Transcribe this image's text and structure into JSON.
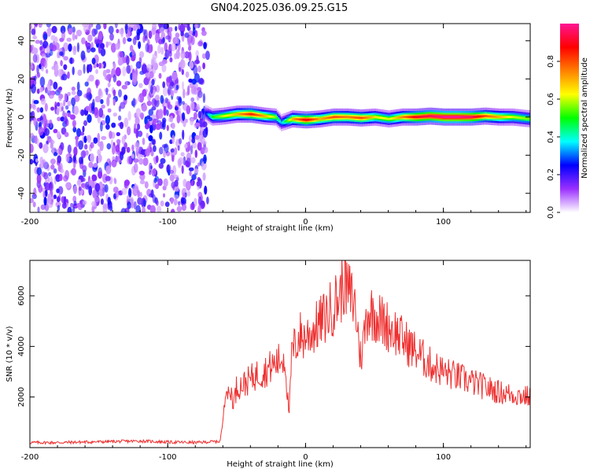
{
  "title": "GN04.2025.036.09.25.G15",
  "chart_data": [
    {
      "type": "heatmap",
      "xlabel": "Height of straight line (km)",
      "ylabel": "Frequency (Hz)",
      "xlim": [
        -200,
        163
      ],
      "ylim": [
        -50,
        49
      ],
      "x_ticks": [
        -200,
        -100,
        0,
        100
      ],
      "x_tick_labels": [
        "-200",
        "-100",
        "0",
        "100"
      ],
      "y_ticks": [
        -40,
        -20,
        0,
        20,
        40
      ],
      "y_tick_labels": [
        "-40",
        "-20",
        "0",
        "20",
        "40"
      ],
      "grid": false,
      "noise_region_km": [
        -200,
        -71
      ],
      "ridge": {
        "x": [
          -73,
          -68,
          -60,
          -50,
          -40,
          -30,
          -22,
          -18,
          -10,
          0,
          10,
          20,
          30,
          40,
          50,
          60,
          70,
          80,
          90,
          100,
          110,
          120,
          130,
          140,
          150,
          163
        ],
        "frequency_hz": [
          2,
          0,
          0.5,
          1.5,
          1.5,
          0.5,
          0,
          -3,
          -1,
          -1.5,
          -1,
          0,
          0,
          -0.5,
          0,
          -1,
          0,
          0,
          0.5,
          0,
          0,
          0,
          0.5,
          0,
          0,
          -1
        ],
        "amplitude": [
          0.25,
          0.5,
          0.6,
          0.7,
          0.85,
          0.7,
          0.55,
          0.35,
          0.7,
          0.9,
          0.7,
          0.8,
          0.75,
          0.8,
          0.65,
          0.6,
          0.75,
          0.9,
          0.95,
          1.0,
          1.0,
          0.95,
          0.8,
          0.7,
          0.6,
          0.55
        ]
      },
      "colorbar": {
        "label": "Normalized spectral amplitude",
        "range": [
          0,
          1
        ],
        "ticks": [
          0.0,
          0.2,
          0.4,
          0.6,
          0.8
        ],
        "tick_labels": [
          "0.0",
          "0.2",
          "0.4",
          "0.6",
          "0.8"
        ],
        "colors": [
          "#ffffff",
          "#9b30ff",
          "#0000ff",
          "#00ffff",
          "#00ff00",
          "#ffff00",
          "#ff8000",
          "#ff0000",
          "#ff1493"
        ]
      }
    },
    {
      "type": "line",
      "xlabel": "Height of straight line (km)",
      "ylabel": "SNR (10 * v/v)",
      "xlim": [
        -200,
        163
      ],
      "ylim": [
        0,
        7400
      ],
      "x_ticks": [
        -200,
        -100,
        0,
        100
      ],
      "x_tick_labels": [
        "-200",
        "-100",
        "0",
        "100"
      ],
      "y_ticks": [
        2000,
        4000,
        6000
      ],
      "y_tick_labels": [
        "2000",
        "4000",
        "6000"
      ],
      "grid": false,
      "line_color": "#ee3030",
      "series": [
        {
          "x": [
            -200,
            -180,
            -160,
            -140,
            -120,
            -100,
            -80,
            -62,
            -60,
            -58,
            -56,
            -54,
            -52,
            -50,
            -45,
            -40,
            -35,
            -30,
            -25,
            -20,
            -15,
            -12,
            -10,
            -8,
            -6,
            -4,
            -2,
            0,
            5,
            10,
            15,
            20,
            25,
            28,
            30,
            33,
            36,
            40,
            45,
            50,
            55,
            60,
            65,
            70,
            80,
            90,
            100,
            110,
            120,
            130,
            140,
            150,
            163
          ],
          "values": [
            200,
            200,
            220,
            240,
            260,
            220,
            200,
            250,
            1000,
            2600,
            2000,
            2200,
            1800,
            2400,
            2500,
            2700,
            2900,
            3000,
            3200,
            3400,
            3600,
            1200,
            3700,
            4000,
            4200,
            4500,
            4300,
            4400,
            4600,
            4900,
            5200,
            5600,
            6000,
            6700,
            6200,
            6000,
            5600,
            3500,
            5400,
            5300,
            5000,
            4800,
            4600,
            4300,
            3800,
            3300,
            3000,
            2800,
            2600,
            2400,
            2200,
            2100,
            2000
          ]
        }
      ]
    }
  ]
}
